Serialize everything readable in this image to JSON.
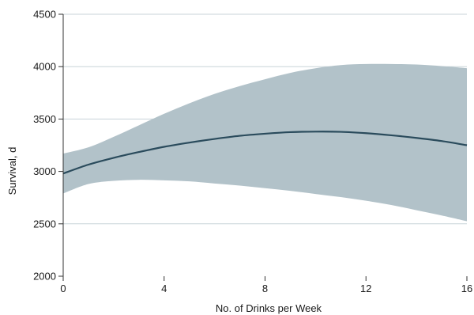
{
  "chart_data": {
    "type": "line",
    "title": "",
    "xlabel": "No. of Drinks per Week",
    "ylabel": "Survival, d",
    "xlim": [
      0,
      16
    ],
    "ylim": [
      2000,
      4500
    ],
    "xticks": [
      0,
      4,
      8,
      12,
      16
    ],
    "yticks": [
      2000,
      2500,
      3000,
      3500,
      4000,
      4500
    ],
    "grid": "horizontal",
    "legend": "none",
    "colors": {
      "line": "#2a4b5c",
      "band": "#b2c2c9",
      "grid": "#c8d3d8",
      "axis": "#333333"
    },
    "series": [
      {
        "x": [
          0,
          1,
          2,
          3,
          4,
          5,
          6,
          7,
          8,
          9,
          10,
          11,
          12,
          13,
          14,
          15,
          16
        ],
        "values": [
          2980,
          3065,
          3130,
          3185,
          3235,
          3275,
          3310,
          3340,
          3360,
          3375,
          3380,
          3378,
          3365,
          3345,
          3320,
          3290,
          3250
        ]
      }
    ],
    "band": {
      "x": [
        0,
        1,
        2,
        3,
        4,
        5,
        6,
        7,
        8,
        9,
        10,
        11,
        12,
        13,
        14,
        15,
        16
      ],
      "upper": [
        3170,
        3230,
        3330,
        3440,
        3550,
        3650,
        3740,
        3815,
        3880,
        3940,
        3985,
        4015,
        4025,
        4025,
        4020,
        4005,
        3985
      ],
      "lower": [
        2790,
        2880,
        2910,
        2920,
        2915,
        2905,
        2885,
        2865,
        2840,
        2815,
        2785,
        2755,
        2720,
        2680,
        2630,
        2580,
        2525
      ]
    }
  }
}
